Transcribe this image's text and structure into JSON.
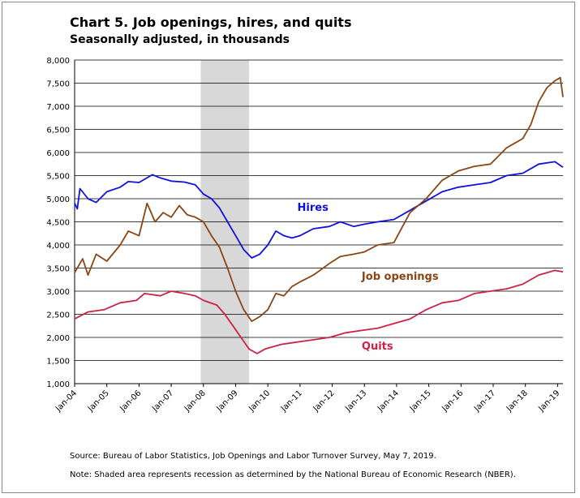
{
  "chart_data": {
    "type": "line",
    "title": "Chart 5. Job openings, hires, and quits",
    "subtitle": "Seasonally adjusted, in thousands",
    "ylim": [
      1000,
      8000
    ],
    "y_ticks": [
      1000,
      1500,
      2000,
      2500,
      3000,
      3500,
      4000,
      4500,
      5000,
      5500,
      6000,
      6500,
      7000,
      7500,
      8000
    ],
    "y_tick_labels": [
      "1,000",
      "1,500",
      "2,000",
      "2,500",
      "3,000",
      "3,500",
      "4,000",
      "4,500",
      "5,000",
      "5,500",
      "6,000",
      "6,500",
      "7,000",
      "7,500",
      "8,000"
    ],
    "xlim": [
      "2004-01",
      "2019-03"
    ],
    "x_tick_labels": [
      "Jan-04",
      "Jan-05",
      "Jan-06",
      "Jan-07",
      "Jan-08",
      "Jan-09",
      "Jan-10",
      "Jan-11",
      "Jan-12",
      "Jan-13",
      "Jan-14",
      "Jan-15",
      "Jan-16",
      "Jan-17",
      "Jan-18",
      "Jan-19"
    ],
    "grid": true,
    "recession_shading": {
      "start": "2007-12",
      "end": "2009-06",
      "color": "#d8d8d8"
    },
    "series": [
      {
        "name": "Hires",
        "color": "#1010e0",
        "points": [
          [
            "2004-01",
            4900
          ],
          [
            "2004-02",
            4780
          ],
          [
            "2004-03",
            5220
          ],
          [
            "2004-06",
            5000
          ],
          [
            "2004-09",
            4920
          ],
          [
            "2005-01",
            5150
          ],
          [
            "2005-06",
            5250
          ],
          [
            "2005-09",
            5370
          ],
          [
            "2006-01",
            5350
          ],
          [
            "2006-06",
            5520
          ],
          [
            "2006-09",
            5450
          ],
          [
            "2007-01",
            5380
          ],
          [
            "2007-06",
            5360
          ],
          [
            "2007-10",
            5300
          ],
          [
            "2008-01",
            5100
          ],
          [
            "2008-04",
            5000
          ],
          [
            "2008-07",
            4800
          ],
          [
            "2008-10",
            4500
          ],
          [
            "2009-01",
            4200
          ],
          [
            "2009-04",
            3900
          ],
          [
            "2009-07",
            3720
          ],
          [
            "2009-10",
            3800
          ],
          [
            "2010-01",
            4000
          ],
          [
            "2010-04",
            4300
          ],
          [
            "2010-07",
            4200
          ],
          [
            "2010-10",
            4150
          ],
          [
            "2011-01",
            4200
          ],
          [
            "2011-06",
            4350
          ],
          [
            "2011-12",
            4400
          ],
          [
            "2012-04",
            4500
          ],
          [
            "2012-09",
            4400
          ],
          [
            "2013-01",
            4450
          ],
          [
            "2013-06",
            4500
          ],
          [
            "2013-12",
            4550
          ],
          [
            "2014-06",
            4750
          ],
          [
            "2014-12",
            4950
          ],
          [
            "2015-06",
            5150
          ],
          [
            "2015-12",
            5250
          ],
          [
            "2016-06",
            5300
          ],
          [
            "2016-12",
            5350
          ],
          [
            "2017-06",
            5500
          ],
          [
            "2017-12",
            5550
          ],
          [
            "2018-06",
            5750
          ],
          [
            "2018-12",
            5800
          ],
          [
            "2019-03",
            5680
          ]
        ]
      },
      {
        "name": "Job openings",
        "color": "#8b4513",
        "points": [
          [
            "2004-01",
            3400
          ],
          [
            "2004-04",
            3700
          ],
          [
            "2004-06",
            3350
          ],
          [
            "2004-09",
            3800
          ],
          [
            "2005-01",
            3650
          ],
          [
            "2005-06",
            4000
          ],
          [
            "2005-09",
            4300
          ],
          [
            "2006-01",
            4200
          ],
          [
            "2006-04",
            4900
          ],
          [
            "2006-07",
            4500
          ],
          [
            "2006-10",
            4700
          ],
          [
            "2007-01",
            4600
          ],
          [
            "2007-04",
            4850
          ],
          [
            "2007-07",
            4650
          ],
          [
            "2007-10",
            4600
          ],
          [
            "2008-01",
            4500
          ],
          [
            "2008-04",
            4200
          ],
          [
            "2008-07",
            3950
          ],
          [
            "2008-10",
            3500
          ],
          [
            "2009-01",
            3000
          ],
          [
            "2009-04",
            2600
          ],
          [
            "2009-07",
            2350
          ],
          [
            "2009-10",
            2450
          ],
          [
            "2010-01",
            2600
          ],
          [
            "2010-04",
            2950
          ],
          [
            "2010-07",
            2900
          ],
          [
            "2010-10",
            3100
          ],
          [
            "2011-01",
            3200
          ],
          [
            "2011-06",
            3350
          ],
          [
            "2011-12",
            3600
          ],
          [
            "2012-04",
            3750
          ],
          [
            "2012-09",
            3800
          ],
          [
            "2013-01",
            3850
          ],
          [
            "2013-06",
            4000
          ],
          [
            "2013-12",
            4050
          ],
          [
            "2014-06",
            4700
          ],
          [
            "2014-12",
            5000
          ],
          [
            "2015-06",
            5400
          ],
          [
            "2015-12",
            5600
          ],
          [
            "2016-06",
            5700
          ],
          [
            "2016-12",
            5750
          ],
          [
            "2017-06",
            6100
          ],
          [
            "2017-12",
            6300
          ],
          [
            "2018-03",
            6600
          ],
          [
            "2018-06",
            7100
          ],
          [
            "2018-09",
            7400
          ],
          [
            "2018-12",
            7550
          ],
          [
            "2019-02",
            7620
          ],
          [
            "2019-03",
            7200
          ]
        ]
      },
      {
        "name": "Quits",
        "color": "#cc2244",
        "points": [
          [
            "2004-01",
            2400
          ],
          [
            "2004-06",
            2550
          ],
          [
            "2004-12",
            2600
          ],
          [
            "2005-06",
            2750
          ],
          [
            "2005-12",
            2800
          ],
          [
            "2006-03",
            2950
          ],
          [
            "2006-09",
            2900
          ],
          [
            "2007-01",
            3000
          ],
          [
            "2007-06",
            2950
          ],
          [
            "2007-10",
            2900
          ],
          [
            "2008-01",
            2800
          ],
          [
            "2008-06",
            2700
          ],
          [
            "2008-09",
            2500
          ],
          [
            "2008-12",
            2250
          ],
          [
            "2009-03",
            2000
          ],
          [
            "2009-06",
            1750
          ],
          [
            "2009-09",
            1650
          ],
          [
            "2009-12",
            1750
          ],
          [
            "2010-06",
            1850
          ],
          [
            "2010-12",
            1900
          ],
          [
            "2011-06",
            1950
          ],
          [
            "2011-12",
            2000
          ],
          [
            "2012-06",
            2100
          ],
          [
            "2012-12",
            2150
          ],
          [
            "2013-06",
            2200
          ],
          [
            "2013-12",
            2300
          ],
          [
            "2014-06",
            2400
          ],
          [
            "2014-12",
            2600
          ],
          [
            "2015-06",
            2750
          ],
          [
            "2015-12",
            2800
          ],
          [
            "2016-06",
            2950
          ],
          [
            "2016-12",
            3000
          ],
          [
            "2017-06",
            3050
          ],
          [
            "2017-12",
            3150
          ],
          [
            "2018-06",
            3350
          ],
          [
            "2018-12",
            3450
          ],
          [
            "2019-03",
            3420
          ]
        ]
      }
    ],
    "annotations": [
      {
        "text": "Hires",
        "series": "Hires",
        "at": [
          "2010-12",
          4740
        ]
      },
      {
        "text": "Job openings",
        "series": "Job openings",
        "at": [
          "2012-12",
          3250
        ]
      },
      {
        "text": "Quits",
        "series": "Quits",
        "at": [
          "2012-12",
          1740
        ]
      }
    ],
    "source": "Source: Bureau of Labor Statistics, Job Openings and Labor Turnover Survey, May 7, 2019.",
    "note": "Note: Shaded area represents recession as determined by the National Bureau of Economic Research (NBER)."
  }
}
